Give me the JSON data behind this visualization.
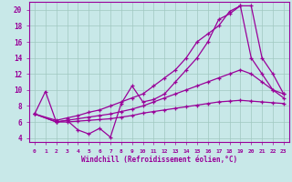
{
  "background_color": "#c8e8e8",
  "grid_color": "#a0c8c0",
  "line_color": "#990099",
  "xlabel": "Windchill (Refroidissement éolien,°C)",
  "xlim": [
    -0.5,
    23.5
  ],
  "ylim": [
    3.5,
    21
  ],
  "yticks": [
    4,
    6,
    8,
    10,
    12,
    14,
    16,
    18,
    20
  ],
  "xticks": [
    0,
    1,
    2,
    3,
    4,
    5,
    6,
    7,
    8,
    9,
    10,
    11,
    12,
    13,
    14,
    15,
    16,
    17,
    18,
    19,
    20,
    21,
    22,
    23
  ],
  "series": [
    {
      "x": [
        0,
        1,
        2,
        3,
        4,
        5,
        6,
        7,
        8,
        9,
        10,
        11,
        12,
        13,
        14,
        15,
        16,
        17,
        18,
        19,
        20,
        21,
        22,
        23
      ],
      "y": [
        7.0,
        9.8,
        6.0,
        6.2,
        5.0,
        4.5,
        5.2,
        4.1,
        8.3,
        10.5,
        8.5,
        8.8,
        9.5,
        11.0,
        12.5,
        14.0,
        16.0,
        18.8,
        19.5,
        20.5,
        20.5,
        14.0,
        12.0,
        9.5
      ]
    },
    {
      "x": [
        0,
        2,
        3,
        4,
        5,
        6,
        7,
        8,
        9,
        10,
        11,
        12,
        13,
        14,
        15,
        16,
        17,
        18,
        19,
        20,
        21,
        22,
        23
      ],
      "y": [
        7.0,
        6.2,
        6.5,
        6.8,
        7.2,
        7.5,
        8.0,
        8.5,
        9.0,
        9.5,
        10.5,
        11.5,
        12.5,
        14.0,
        16.0,
        17.0,
        18.0,
        19.8,
        20.5,
        14.0,
        12.0,
        10.0,
        9.0
      ]
    },
    {
      "x": [
        0,
        2,
        3,
        4,
        5,
        6,
        7,
        8,
        9,
        10,
        11,
        12,
        13,
        14,
        15,
        16,
        17,
        18,
        19,
        20,
        21,
        22,
        23
      ],
      "y": [
        7.0,
        6.0,
        6.2,
        6.4,
        6.6,
        6.8,
        7.0,
        7.3,
        7.6,
        8.0,
        8.5,
        9.0,
        9.5,
        10.0,
        10.5,
        11.0,
        11.5,
        12.0,
        12.5,
        12.0,
        11.0,
        10.0,
        9.5
      ]
    },
    {
      "x": [
        0,
        2,
        3,
        4,
        5,
        6,
        7,
        8,
        9,
        10,
        11,
        12,
        13,
        14,
        15,
        16,
        17,
        18,
        19,
        20,
        21,
        22,
        23
      ],
      "y": [
        7.0,
        6.0,
        6.0,
        6.1,
        6.2,
        6.3,
        6.4,
        6.6,
        6.8,
        7.1,
        7.3,
        7.5,
        7.7,
        7.9,
        8.1,
        8.3,
        8.5,
        8.6,
        8.7,
        8.6,
        8.5,
        8.4,
        8.3
      ]
    }
  ]
}
